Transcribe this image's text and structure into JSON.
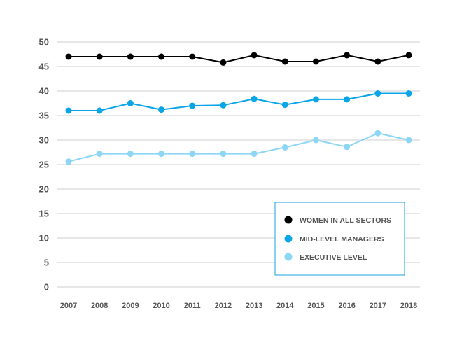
{
  "chart_data": {
    "type": "line",
    "x": [
      "2007",
      "2008",
      "2009",
      "2010",
      "2011",
      "2012",
      "2013",
      "2014",
      "2015",
      "2016",
      "2017",
      "2018"
    ],
    "ylim": [
      0,
      50
    ],
    "yticks": [
      0,
      5,
      10,
      15,
      20,
      25,
      30,
      35,
      40,
      45,
      50
    ],
    "grid": true,
    "legend_position": "bottom-right",
    "series": [
      {
        "name": "WOMEN IN ALL SECTORS",
        "color": "#000000",
        "values": [
          47.0,
          47.0,
          47.0,
          47.0,
          47.0,
          45.8,
          47.3,
          46.0,
          46.0,
          47.3,
          46.0,
          47.3
        ]
      },
      {
        "name": "MID-LEVEL MANAGERS",
        "color": "#0aa5e6",
        "values": [
          36.0,
          36.0,
          37.5,
          36.2,
          37.0,
          37.1,
          38.4,
          37.2,
          38.3,
          38.3,
          39.5,
          39.5
        ]
      },
      {
        "name": "EXECUTIVE LEVEL",
        "color": "#8dd6f5",
        "values": [
          25.6,
          27.2,
          27.2,
          27.2,
          27.2,
          27.2,
          27.2,
          28.5,
          30.0,
          28.6,
          31.4,
          30.0
        ]
      }
    ]
  }
}
